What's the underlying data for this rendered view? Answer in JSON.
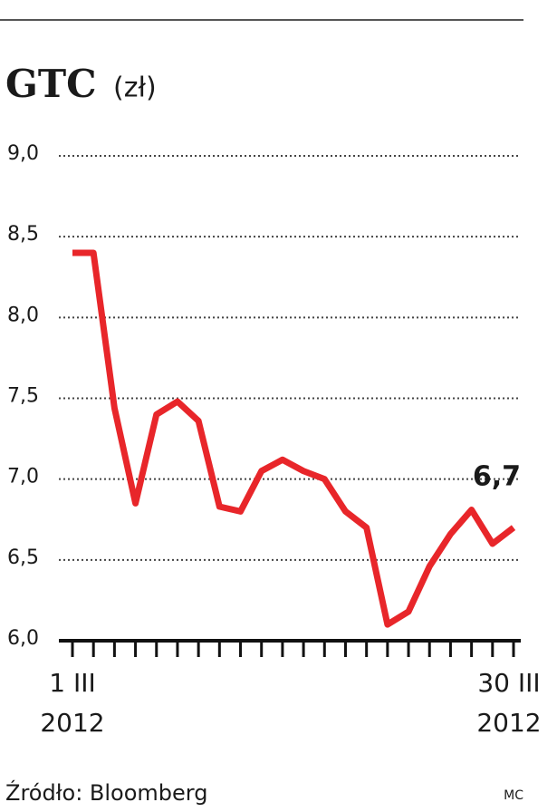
{
  "chart_data": {
    "type": "line",
    "title": "GTC",
    "unit": "(zł)",
    "categories": [
      "1 III\n2012",
      null,
      null,
      null,
      null,
      null,
      null,
      null,
      null,
      null,
      null,
      null,
      null,
      null,
      null,
      null,
      null,
      null,
      null,
      null,
      null,
      "30 III\n2012"
    ],
    "series": [
      {
        "color": "#e8262a",
        "values": [
          8.4,
          8.4,
          7.44,
          6.85,
          7.4,
          7.48,
          7.36,
          6.83,
          6.8,
          7.05,
          7.12,
          7.05,
          7.0,
          6.8,
          6.7,
          6.1,
          6.18,
          6.46,
          6.66,
          6.81,
          6.6,
          6.7
        ],
        "value_labels": [
          null,
          null,
          null,
          null,
          null,
          null,
          null,
          null,
          null,
          null,
          null,
          null,
          null,
          null,
          null,
          null,
          null,
          null,
          null,
          null,
          null,
          "6,7"
        ]
      }
    ],
    "ylim": [
      6,
      9
    ],
    "yticks": [
      {
        "value": 6,
        "label": "6,0"
      },
      {
        "value": 6.5,
        "label": "6,5"
      },
      {
        "value": 7,
        "label": "7,0"
      },
      {
        "value": 7.5,
        "label": "7,5"
      },
      {
        "value": 8,
        "label": "8,0"
      },
      {
        "value": 8.5,
        "label": "8,5"
      },
      {
        "value": 9,
        "label": "9,0"
      }
    ],
    "grid": true,
    "source": "Źródło: Bloomberg",
    "credit": "MC"
  }
}
